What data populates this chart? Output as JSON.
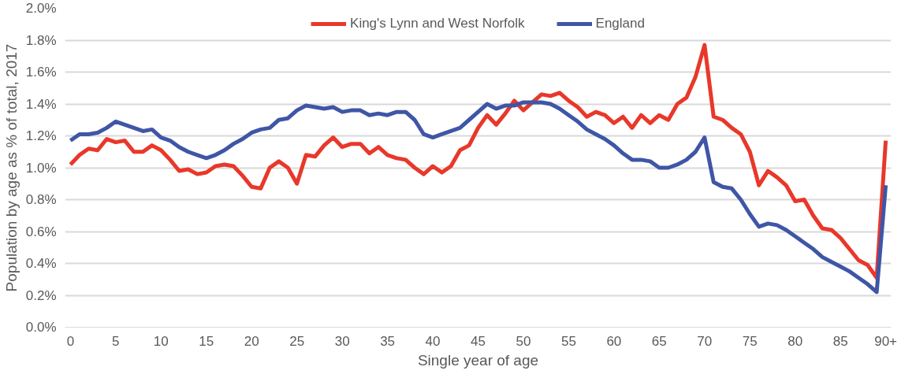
{
  "chart_data": {
    "type": "line",
    "xlabel": "Single year of age",
    "ylabel": "Population by age as % of total, 2017",
    "x": [
      0,
      1,
      2,
      3,
      4,
      5,
      6,
      7,
      8,
      9,
      10,
      11,
      12,
      13,
      14,
      15,
      16,
      17,
      18,
      19,
      20,
      21,
      22,
      23,
      24,
      25,
      26,
      27,
      28,
      29,
      30,
      31,
      32,
      33,
      34,
      35,
      36,
      37,
      38,
      39,
      40,
      41,
      42,
      43,
      44,
      45,
      46,
      47,
      48,
      49,
      50,
      51,
      52,
      53,
      54,
      55,
      56,
      57,
      58,
      59,
      60,
      61,
      62,
      63,
      64,
      65,
      66,
      67,
      68,
      69,
      70,
      71,
      72,
      73,
      74,
      75,
      76,
      77,
      78,
      79,
      80,
      81,
      82,
      83,
      84,
      85,
      86,
      87,
      88,
      89,
      90
    ],
    "series": [
      {
        "name": "King's Lynn and West Norfolk",
        "color": "#e8382a",
        "values": [
          1.02,
          1.08,
          1.12,
          1.11,
          1.18,
          1.16,
          1.17,
          1.1,
          1.1,
          1.14,
          1.11,
          1.05,
          0.98,
          0.99,
          0.96,
          0.97,
          1.01,
          1.02,
          1.01,
          0.95,
          0.88,
          0.87,
          1.0,
          1.04,
          1.0,
          0.9,
          1.08,
          1.07,
          1.14,
          1.19,
          1.13,
          1.15,
          1.15,
          1.09,
          1.13,
          1.08,
          1.06,
          1.05,
          1.0,
          0.96,
          1.01,
          0.97,
          1.01,
          1.11,
          1.14,
          1.25,
          1.33,
          1.27,
          1.34,
          1.42,
          1.36,
          1.41,
          1.46,
          1.45,
          1.47,
          1.42,
          1.38,
          1.32,
          1.35,
          1.33,
          1.28,
          1.32,
          1.25,
          1.33,
          1.28,
          1.33,
          1.3,
          1.4,
          1.44,
          1.57,
          1.77,
          1.32,
          1.3,
          1.25,
          1.21,
          1.1,
          0.89,
          0.98,
          0.94,
          0.89,
          0.79,
          0.8,
          0.7,
          0.62,
          0.61,
          0.56,
          0.49,
          0.42,
          0.39,
          0.31,
          1.17
        ]
      },
      {
        "name": "England",
        "color": "#3f56a6",
        "values": [
          1.17,
          1.21,
          1.21,
          1.22,
          1.25,
          1.29,
          1.27,
          1.25,
          1.23,
          1.24,
          1.19,
          1.17,
          1.13,
          1.1,
          1.08,
          1.06,
          1.08,
          1.11,
          1.15,
          1.18,
          1.22,
          1.24,
          1.25,
          1.3,
          1.31,
          1.36,
          1.39,
          1.38,
          1.37,
          1.38,
          1.35,
          1.36,
          1.36,
          1.33,
          1.34,
          1.33,
          1.35,
          1.35,
          1.3,
          1.21,
          1.19,
          1.21,
          1.23,
          1.25,
          1.3,
          1.35,
          1.4,
          1.37,
          1.39,
          1.39,
          1.41,
          1.41,
          1.41,
          1.4,
          1.37,
          1.33,
          1.29,
          1.24,
          1.21,
          1.18,
          1.14,
          1.09,
          1.05,
          1.05,
          1.04,
          1.0,
          1.0,
          1.02,
          1.05,
          1.1,
          1.19,
          0.91,
          0.88,
          0.87,
          0.8,
          0.71,
          0.63,
          0.65,
          0.64,
          0.61,
          0.57,
          0.53,
          0.49,
          0.44,
          0.41,
          0.38,
          0.35,
          0.31,
          0.27,
          0.22,
          0.89
        ]
      }
    ],
    "xlim": [
      -0.6,
      90.6
    ],
    "xticks": [
      0,
      5,
      10,
      15,
      20,
      25,
      30,
      35,
      40,
      45,
      50,
      55,
      60,
      65,
      70,
      75,
      80,
      85,
      {
        "value": 90,
        "label": "90+"
      }
    ],
    "ylim": [
      0,
      2.0
    ],
    "yticks": [
      {
        "value": 0,
        "label": "0.0%"
      },
      {
        "value": 0.2,
        "label": "0.2%"
      },
      {
        "value": 0.4,
        "label": "0.4%"
      },
      {
        "value": 0.6,
        "label": "0.6%"
      },
      {
        "value": 0.8,
        "label": "0.8%"
      },
      {
        "value": 1.0,
        "label": "1.0%"
      },
      {
        "value": 1.2,
        "label": "1.2%"
      },
      {
        "value": 1.4,
        "label": "1.4%"
      },
      {
        "value": 1.6,
        "label": "1.6%"
      },
      {
        "value": 1.8,
        "label": "1.8%"
      },
      {
        "value": 2.0,
        "label": "2.0%"
      }
    ],
    "grid": "y",
    "legend": "top",
    "marker": "none",
    "line_style": "solid"
  }
}
